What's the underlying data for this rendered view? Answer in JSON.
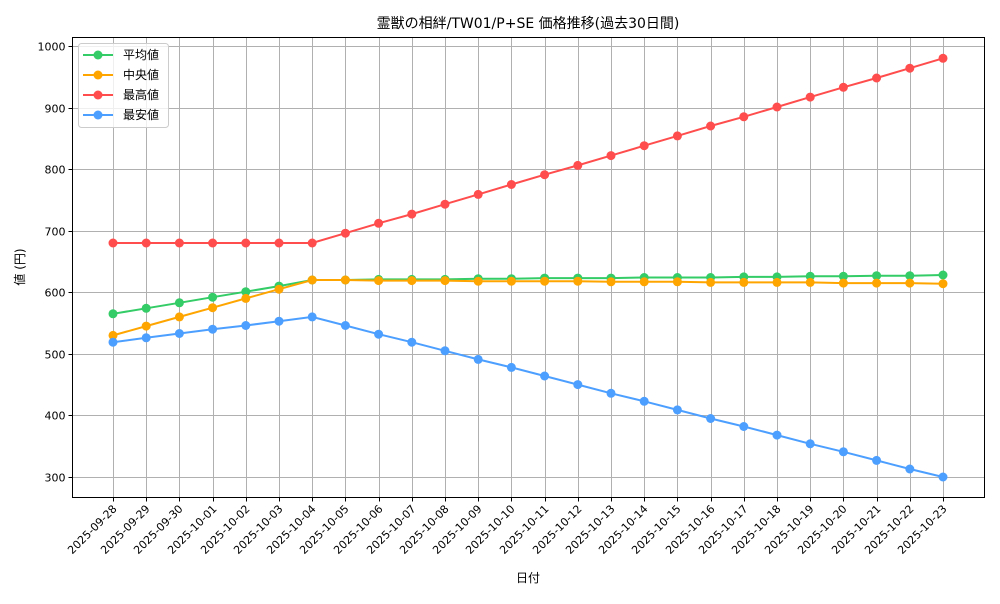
{
  "chart_data": {
    "type": "line",
    "title": "霊獣の相絆/TW01/P+SE 価格推移(過去30日間)",
    "xlabel": "日付",
    "ylabel": "値 (円)",
    "ylim": [
      270,
      1015
    ],
    "yticks": [
      300,
      400,
      500,
      600,
      700,
      800,
      900,
      1000
    ],
    "grid": true,
    "legend_position": "upper left",
    "categories": [
      "2025-09-28",
      "2025-09-29",
      "2025-09-30",
      "2025-10-01",
      "2025-10-02",
      "2025-10-03",
      "2025-10-04",
      "2025-10-05",
      "2025-10-06",
      "2025-10-07",
      "2025-10-08",
      "2025-10-09",
      "2025-10-10",
      "2025-10-11",
      "2025-10-12",
      "2025-10-13",
      "2025-10-14",
      "2025-10-15",
      "2025-10-16",
      "2025-10-17",
      "2025-10-18",
      "2025-10-19",
      "2025-10-20",
      "2025-10-21",
      "2025-10-22",
      "2025-10-23"
    ],
    "series": [
      {
        "name": "平均値",
        "color": "#33cc66",
        "values": [
          565,
          574,
          583,
          592,
          601,
          610,
          620,
          620,
          621,
          621,
          621,
          622,
          622,
          623,
          623,
          623,
          624,
          624,
          624,
          625,
          625,
          626,
          626,
          627,
          627,
          628
        ]
      },
      {
        "name": "中央値",
        "color": "#ffa500",
        "values": [
          530,
          545,
          560,
          575,
          590,
          605,
          620,
          620,
          619,
          619,
          619,
          618,
          618,
          618,
          618,
          617,
          617,
          617,
          616,
          616,
          616,
          616,
          615,
          615,
          615,
          614
        ]
      },
      {
        "name": "最高値",
        "color": "#ff4d4d",
        "values": [
          680,
          680,
          680,
          680,
          680,
          680,
          680,
          696,
          712,
          727,
          743,
          759,
          775,
          791,
          806,
          822,
          838,
          854,
          870,
          885,
          901,
          917,
          933,
          948,
          964,
          980
        ]
      },
      {
        "name": "最安値",
        "color": "#4d9fff",
        "values": [
          519,
          526,
          533,
          540,
          546,
          553,
          560,
          546,
          532,
          519,
          505,
          491,
          478,
          464,
          450,
          436,
          423,
          409,
          395,
          382,
          368,
          354,
          341,
          327,
          313,
          300
        ]
      }
    ]
  }
}
